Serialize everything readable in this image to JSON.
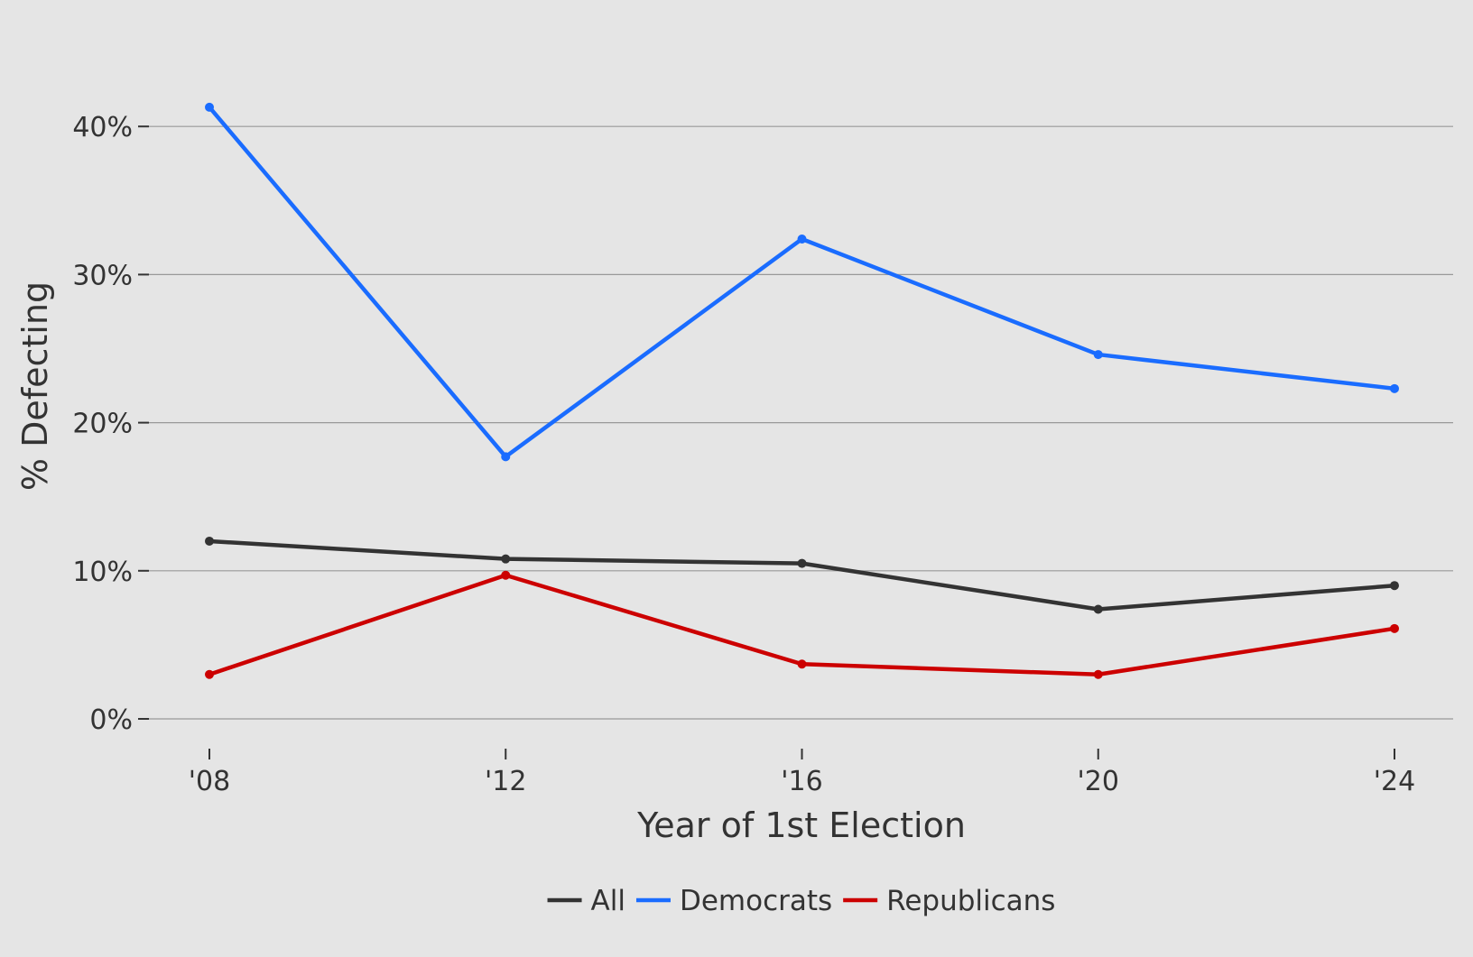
{
  "chart_data": {
    "type": "line",
    "xlabel": "Year of 1st Election",
    "ylabel": "% Defecting",
    "categories": [
      "'08",
      "'12",
      "'16",
      "'20",
      "'24"
    ],
    "y_ticks": [
      "0%",
      "10%",
      "20%",
      "30%",
      "40%"
    ],
    "y_tick_values": [
      0,
      10,
      20,
      30,
      40
    ],
    "ylim": [
      0,
      42
    ],
    "grid": true,
    "legend_position": "bottom",
    "series": [
      {
        "name": "All",
        "color": "#333333",
        "values": [
          12.0,
          10.8,
          10.5,
          7.4,
          9.0
        ]
      },
      {
        "name": "Democrats",
        "color": "#1a6cff",
        "values": [
          41.3,
          17.7,
          32.4,
          24.6,
          22.3
        ]
      },
      {
        "name": "Republicans",
        "color": "#cc0000",
        "values": [
          3.0,
          9.7,
          3.7,
          3.0,
          6.1
        ]
      }
    ]
  }
}
